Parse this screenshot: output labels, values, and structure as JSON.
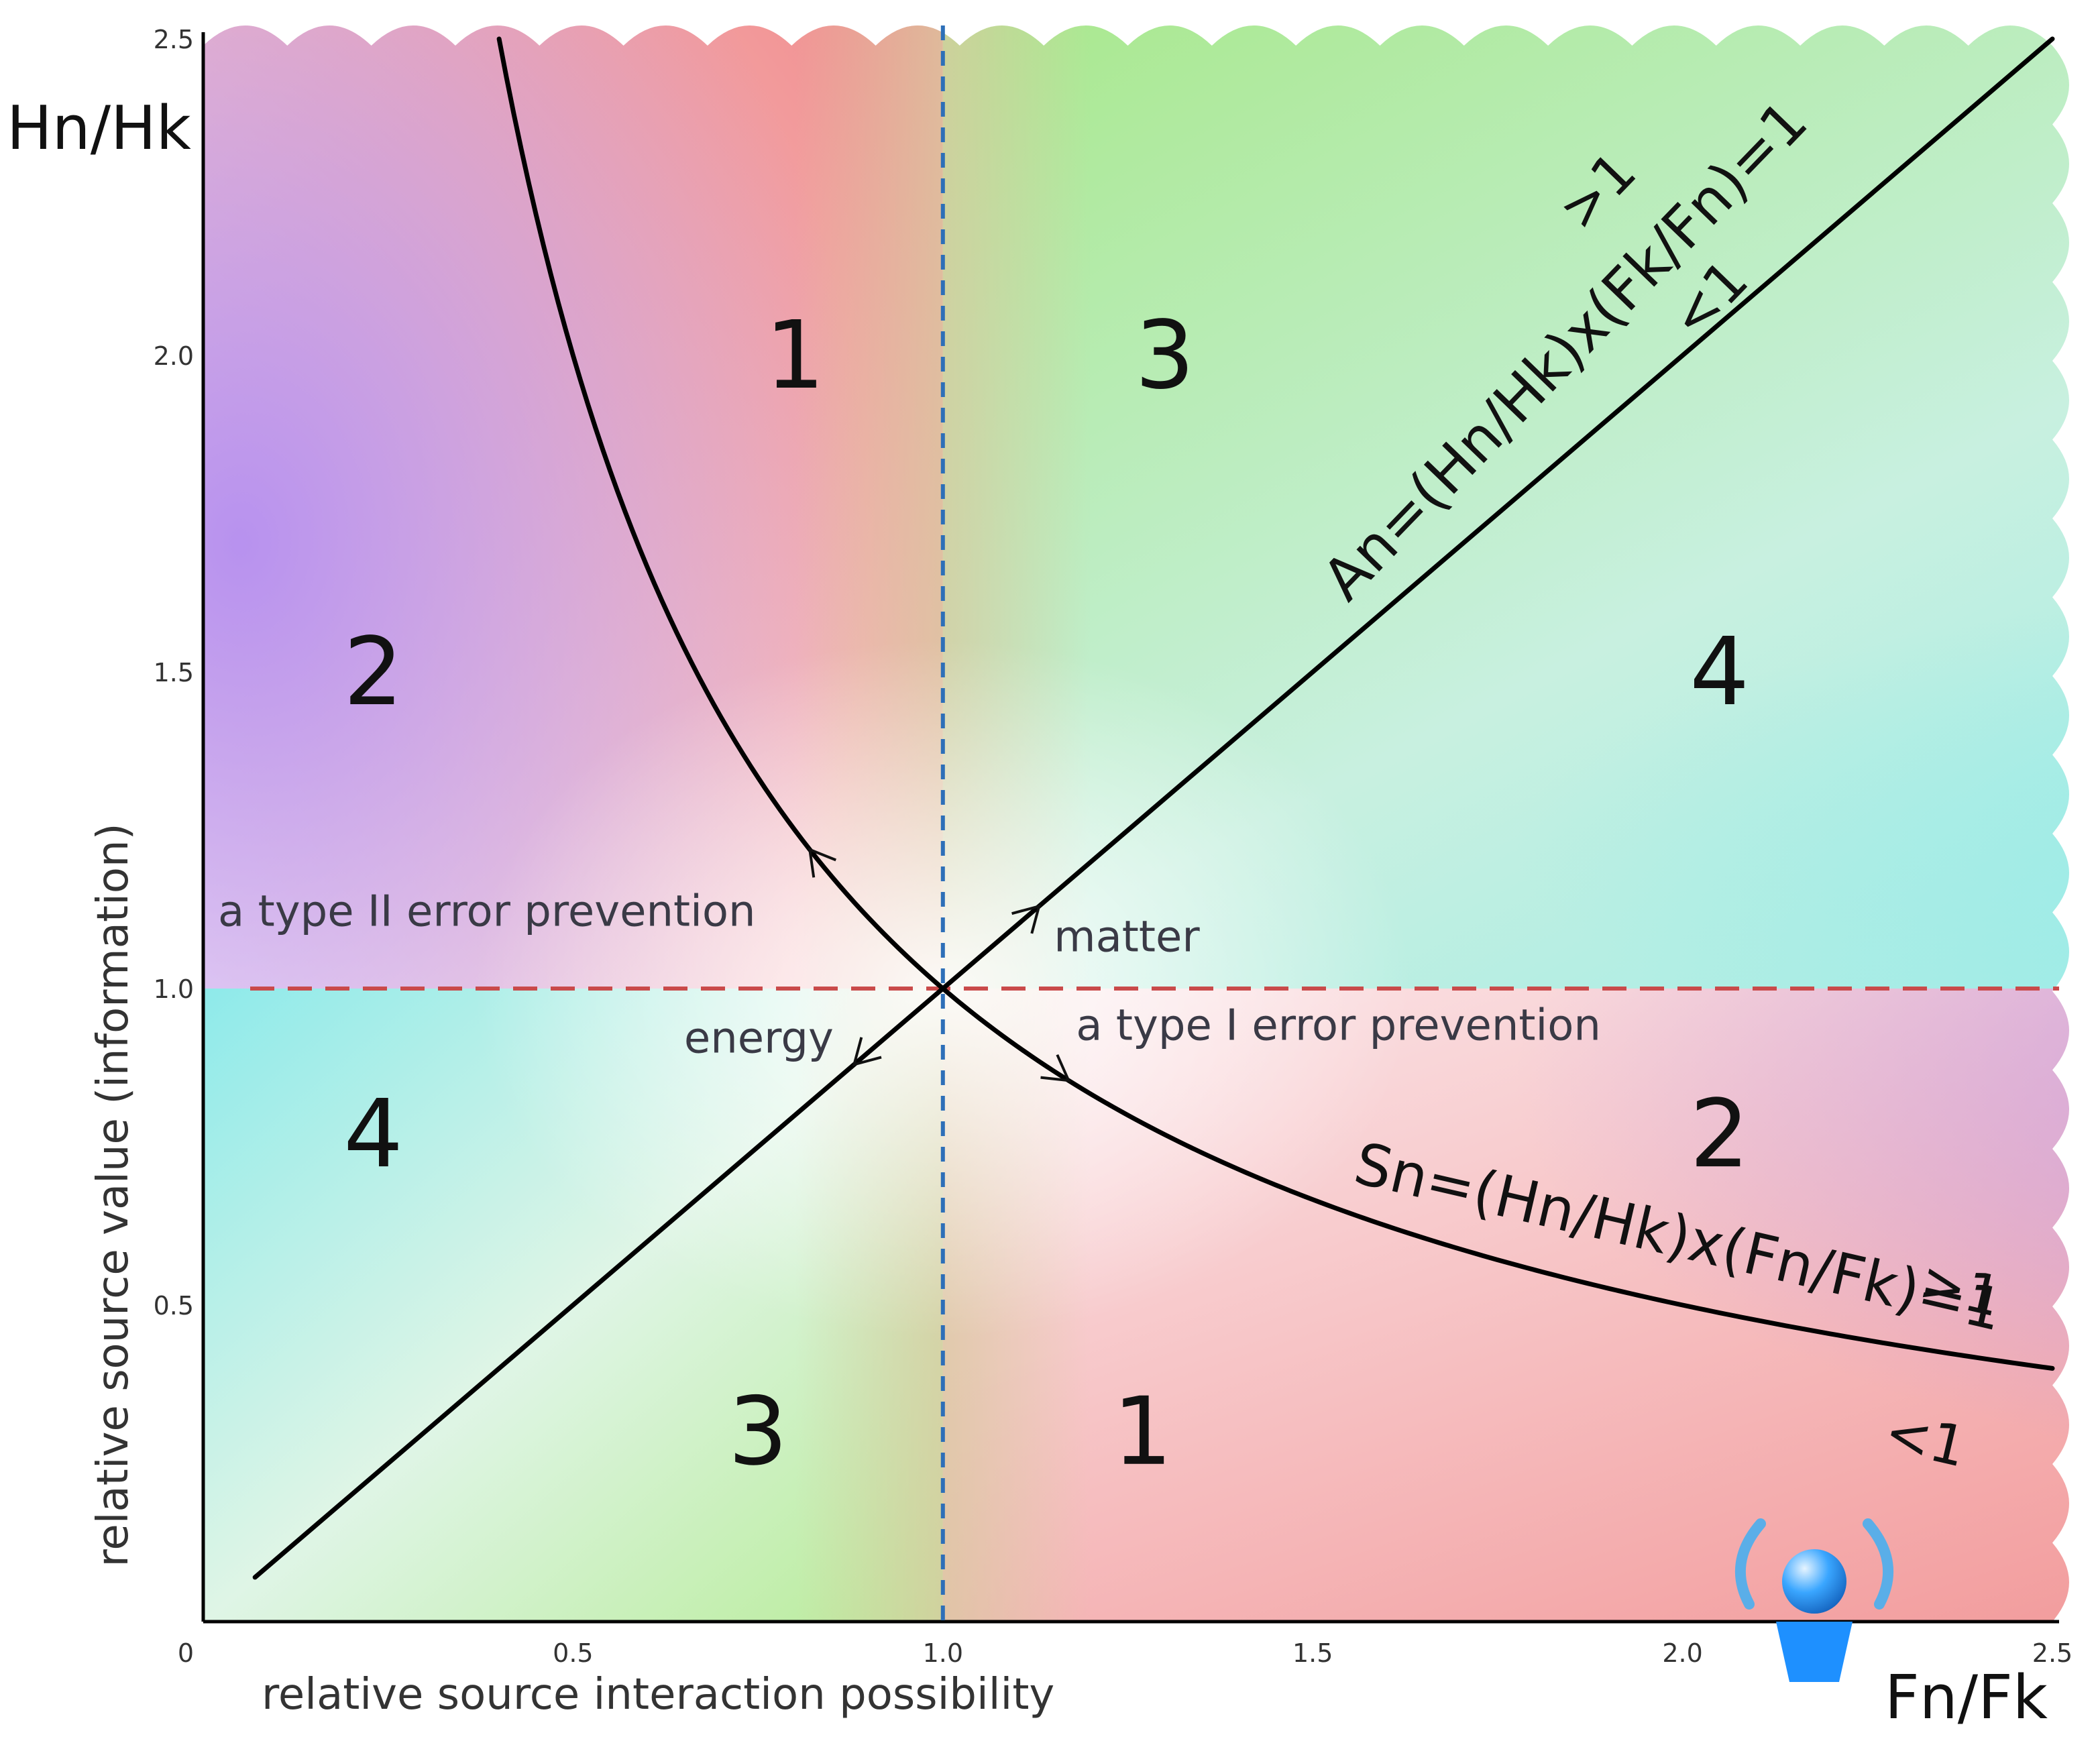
{
  "chart_data": {
    "type": "line",
    "title": "",
    "xlabel": "relative source interaction possibility",
    "ylabel": "relative source value (information)",
    "x_axis_symbol": "Fn/Fk",
    "y_axis_symbol": "Hn/Hk",
    "xlim": [
      0,
      2.5
    ],
    "ylim": [
      0,
      2.5
    ],
    "x_ticks": [
      "0",
      "0.5",
      "1.0",
      "1.5",
      "2.0",
      "2.5"
    ],
    "y_ticks": [
      "0.5",
      "1.0",
      "1.5",
      "2.0",
      "2.5"
    ],
    "grid": false,
    "reference_lines": [
      {
        "orientation": "vertical",
        "value": 1.0,
        "style": "dashed",
        "color": "#2d6fb8"
      },
      {
        "orientation": "horizontal",
        "value": 1.0,
        "style": "dashed",
        "color": "#c94a4a"
      }
    ],
    "series": [
      {
        "formula": "An=(Hn/Hk)x(Fk/Fn)=1",
        "above": ">1",
        "below": "<1",
        "kind": "y = x",
        "x": [
          0.07,
          1.0,
          2.5
        ],
        "y": [
          0.07,
          1.0,
          2.5
        ]
      },
      {
        "formula": "Sn=(Hn/Hk)x(Fn/Fk)=1",
        "above": ">1",
        "below": "<1",
        "kind": "y = 1/x",
        "x": [
          0.4,
          0.5,
          0.75,
          1.0,
          1.25,
          1.5,
          2.0,
          2.5
        ],
        "y": [
          2.5,
          2.0,
          1.333,
          1.0,
          0.8,
          0.667,
          0.5,
          0.4
        ]
      }
    ],
    "regions": [
      {
        "label": "1",
        "x": 0.8,
        "y": 2.0
      },
      {
        "label": "3",
        "x": 1.3,
        "y": 2.0
      },
      {
        "label": "2",
        "x": 0.23,
        "y": 1.5
      },
      {
        "label": "4",
        "x": 2.05,
        "y": 1.5
      },
      {
        "label": "4",
        "x": 0.23,
        "y": 0.77
      },
      {
        "label": "2",
        "x": 2.05,
        "y": 0.77
      },
      {
        "label": "3",
        "x": 0.75,
        "y": 0.3
      },
      {
        "label": "1",
        "x": 1.27,
        "y": 0.3
      }
    ],
    "annotations": [
      {
        "text": "a type II error prevention",
        "x": 0.02,
        "y": 1.12
      },
      {
        "text": "matter",
        "x": 1.15,
        "y": 1.08
      },
      {
        "text": "energy",
        "x": 0.65,
        "y": 0.92
      },
      {
        "text": "a type I error prevention",
        "x": 1.18,
        "y": 0.94
      }
    ],
    "colors": {
      "red_zone": "#f08a8a",
      "green_zone": "#a8e88a",
      "purple_zone": "#b48ef0",
      "cyan_zone": "#8eeaea",
      "curve": "#000000",
      "logo_blue": "#1e90ff"
    }
  }
}
